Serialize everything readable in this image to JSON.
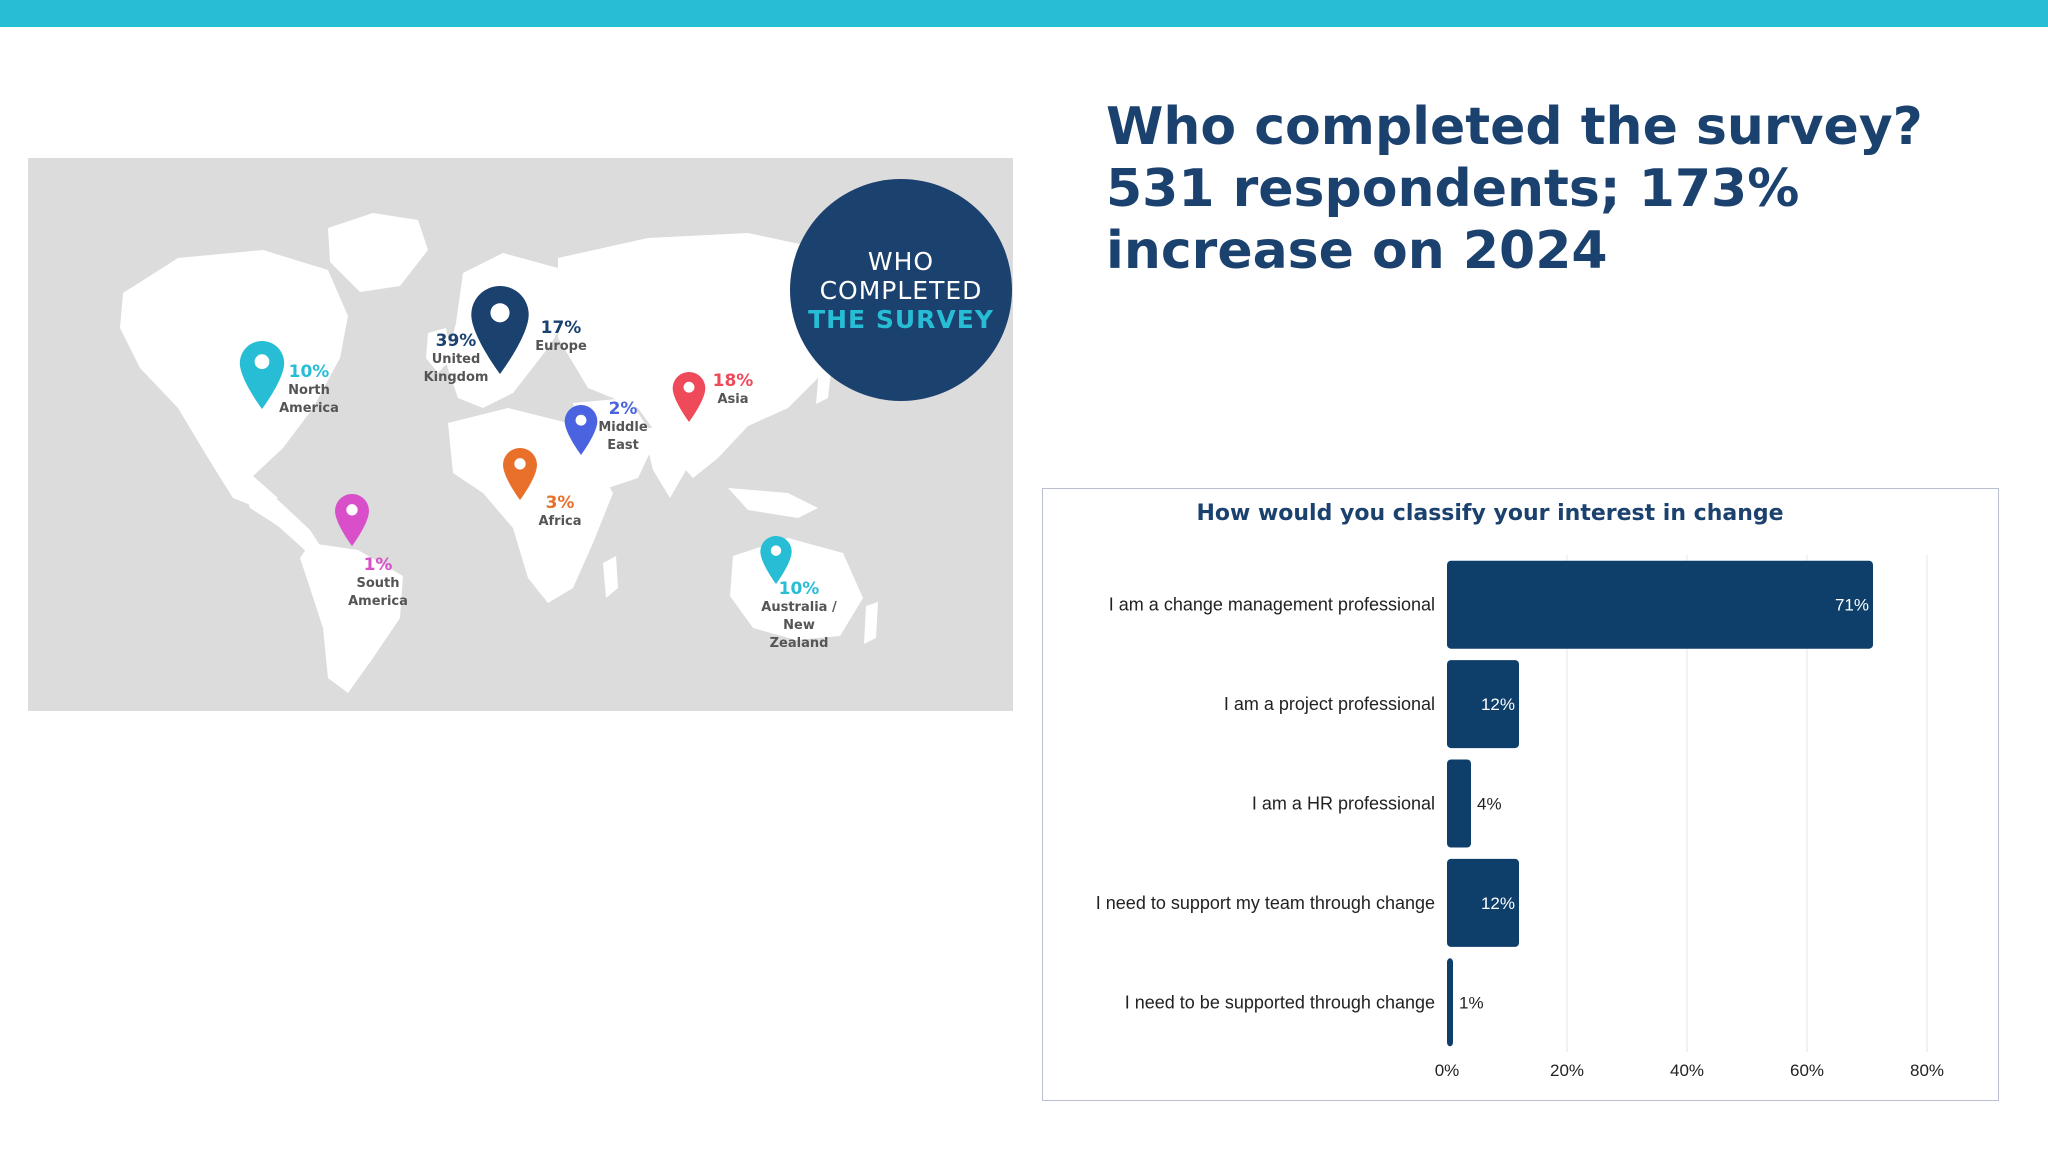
{
  "slide": {
    "headline": "Who completed the survey? 531 respondents; 173% increase on 2024"
  },
  "map": {
    "badge": {
      "line1": "WHO",
      "line2": "COMPLETED",
      "line3": "THE SURVEY"
    },
    "regions": [
      {
        "pct": "39%",
        "name": "United\nKingdom",
        "color": "#1b416e"
      },
      {
        "pct": "17%",
        "name": "Europe",
        "color": "#1b416e"
      },
      {
        "pct": "10%",
        "name": "North\nAmerica",
        "color": "#27bdd5"
      },
      {
        "pct": "2%",
        "name": "Middle\nEast",
        "color": "#4a63e0"
      },
      {
        "pct": "18%",
        "name": "Asia",
        "color": "#ee4a5a"
      },
      {
        "pct": "3%",
        "name": "Africa",
        "color": "#e8702a"
      },
      {
        "pct": "1%",
        "name": "South\nAmerica",
        "color": "#d94fc9"
      },
      {
        "pct": "10%",
        "name": "Australia /\nNew\nZealand",
        "color": "#27bdd5"
      }
    ]
  },
  "chart_data": {
    "type": "bar",
    "orientation": "horizontal",
    "title": "How would you classify your interest in change",
    "categories": [
      "I am a change management professional",
      "I am a project professional",
      "I am a HR professional",
      "I need to support my team through change",
      "I need to be supported through change"
    ],
    "values": [
      71,
      12,
      4,
      12,
      1
    ],
    "value_labels": [
      "71%",
      "12%",
      "4%",
      "12%",
      "1%"
    ],
    "xlim": [
      0,
      80
    ],
    "xticks": [
      "0%",
      "20%",
      "40%",
      "60%",
      "80%"
    ],
    "grid": true,
    "bar_color": "#0e3f6a"
  }
}
